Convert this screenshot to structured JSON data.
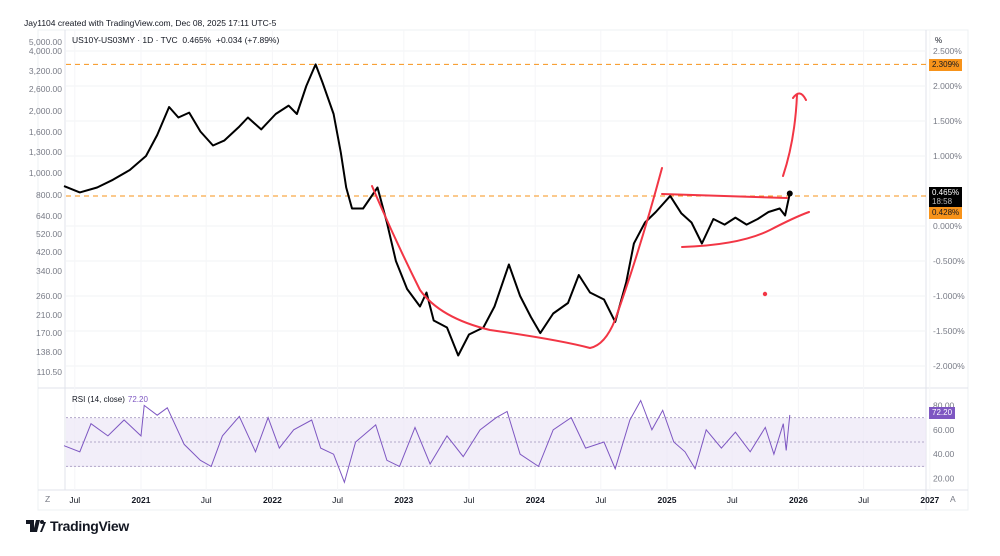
{
  "credit": "Jay1104 created with TradingView.com, Dec 08, 2025 17:11 UTC-5",
  "legend": {
    "symbol": "US10Y-US03MY · 1D · TVC",
    "last": "0.465%",
    "change": "+0.034 (+7.89%)"
  },
  "rsi_legend": {
    "label": "RSI (14, close)",
    "value": "72.20"
  },
  "logo": "TradingView",
  "tags": {
    "high": "2.309%",
    "last": "0.465%",
    "countdown": "18:58",
    "level": "0.428%",
    "rsi": "72.20",
    "unit": "%"
  },
  "axis_buttons": {
    "left": "Z",
    "right": "A"
  },
  "colors": {
    "line": "#000000",
    "level": "#f7931a",
    "annotation": "#f23645",
    "rsi": "#7e57c2",
    "rsi_band": "#ede7f6"
  },
  "chart_data": [
    {
      "type": "line",
      "title": "US10Y-US03MY · 1D · TVC",
      "y_unit": "%",
      "ylim": [
        -2.2,
        2.55
      ],
      "right_ticks": [
        "2.500%",
        "2.000%",
        "1.500%",
        "1.000%",
        "0.000%",
        "-0.500%",
        "-1.000%",
        "-1.500%",
        "-2.000%"
      ],
      "left_ticks": [
        "5,000.00",
        "4,000.00",
        "3,200.00",
        "2,600.00",
        "2,000.00",
        "1,600.00",
        "1,300.00",
        "1,000.00",
        "800.00",
        "640.00",
        "520.00",
        "420.00",
        "340.00",
        "260.00",
        "210.00",
        "170.00",
        "138.00",
        "110.50"
      ],
      "x_ticks": [
        "Jul",
        "2021",
        "Jul",
        "2022",
        "Jul",
        "2023",
        "Jul",
        "2024",
        "Jul",
        "2025",
        "Jul",
        "2026",
        "Jul",
        "2027"
      ],
      "horizontal_levels": [
        2.309,
        0.428
      ],
      "points": [
        [
          "2020-06-01",
          0.57
        ],
        [
          "2020-07-15",
          0.48
        ],
        [
          "2020-09-01",
          0.55
        ],
        [
          "2020-10-15",
          0.66
        ],
        [
          "2020-12-01",
          0.8
        ],
        [
          "2021-01-15",
          1.0
        ],
        [
          "2021-02-15",
          1.3
        ],
        [
          "2021-03-20",
          1.7
        ],
        [
          "2021-04-15",
          1.55
        ],
        [
          "2021-05-15",
          1.62
        ],
        [
          "2021-06-15",
          1.35
        ],
        [
          "2021-07-20",
          1.15
        ],
        [
          "2021-08-20",
          1.22
        ],
        [
          "2021-10-01",
          1.42
        ],
        [
          "2021-10-25",
          1.55
        ],
        [
          "2021-12-01",
          1.38
        ],
        [
          "2022-01-10",
          1.6
        ],
        [
          "2022-02-15",
          1.72
        ],
        [
          "2022-03-10",
          1.6
        ],
        [
          "2022-04-05",
          2.0
        ],
        [
          "2022-05-01",
          2.309
        ],
        [
          "2022-05-20",
          2.05
        ],
        [
          "2022-06-20",
          1.6
        ],
        [
          "2022-07-10",
          1.05
        ],
        [
          "2022-07-25",
          0.55
        ],
        [
          "2022-08-10",
          0.25
        ],
        [
          "2022-09-10",
          0.25
        ],
        [
          "2022-10-20",
          0.55
        ],
        [
          "2022-11-15",
          0.05
        ],
        [
          "2022-12-10",
          -0.5
        ],
        [
          "2023-01-10",
          -0.9
        ],
        [
          "2023-02-15",
          -1.15
        ],
        [
          "2023-03-05",
          -0.95
        ],
        [
          "2023-03-25",
          -1.35
        ],
        [
          "2023-05-01",
          -1.45
        ],
        [
          "2023-06-01",
          -1.85
        ],
        [
          "2023-07-01",
          -1.55
        ],
        [
          "2023-08-10",
          -1.45
        ],
        [
          "2023-09-10",
          -1.15
        ],
        [
          "2023-10-20",
          -0.55
        ],
        [
          "2023-11-20",
          -1.0
        ],
        [
          "2023-12-20",
          -1.3
        ],
        [
          "2024-01-15",
          -1.53
        ],
        [
          "2024-02-20",
          -1.25
        ],
        [
          "2024-04-01",
          -1.1
        ],
        [
          "2024-05-01",
          -0.7
        ],
        [
          "2024-06-01",
          -0.95
        ],
        [
          "2024-07-10",
          -1.05
        ],
        [
          "2024-08-10",
          -1.37
        ],
        [
          "2024-09-10",
          -0.8
        ],
        [
          "2024-10-01",
          -0.25
        ],
        [
          "2024-11-01",
          0.05
        ],
        [
          "2024-12-01",
          0.2
        ],
        [
          "2025-01-10",
          0.43
        ],
        [
          "2025-02-10",
          0.18
        ],
        [
          "2025-03-10",
          0.05
        ],
        [
          "2025-04-08",
          -0.25
        ],
        [
          "2025-05-10",
          0.1
        ],
        [
          "2025-06-10",
          0.02
        ],
        [
          "2025-07-10",
          0.12
        ],
        [
          "2025-08-10",
          0.02
        ],
        [
          "2025-09-10",
          0.1
        ],
        [
          "2025-10-10",
          0.2
        ],
        [
          "2025-11-10",
          0.25
        ],
        [
          "2025-11-25",
          0.15
        ],
        [
          "2025-12-08",
          0.465
        ]
      ]
    },
    {
      "type": "line",
      "title": "RSI (14, close)",
      "ylim": [
        15,
        88
      ],
      "ticks": [
        "80.00",
        "60.00",
        "40.00",
        "20.00"
      ],
      "bands": [
        30,
        50,
        70
      ],
      "points": [
        [
          "2020-06-01",
          47
        ],
        [
          "2020-07-15",
          42
        ],
        [
          "2020-08-15",
          65
        ],
        [
          "2020-10-01",
          55
        ],
        [
          "2020-11-15",
          68
        ],
        [
          "2021-01-01",
          55
        ],
        [
          "2021-01-10",
          80
        ],
        [
          "2021-02-15",
          72
        ],
        [
          "2021-03-15",
          78
        ],
        [
          "2021-05-01",
          48
        ],
        [
          "2021-06-15",
          35
        ],
        [
          "2021-07-15",
          30
        ],
        [
          "2021-08-15",
          55
        ],
        [
          "2021-10-01",
          71
        ],
        [
          "2021-11-15",
          42
        ],
        [
          "2021-12-20",
          70
        ],
        [
          "2022-01-20",
          45
        ],
        [
          "2022-03-01",
          60
        ],
        [
          "2022-04-20",
          68
        ],
        [
          "2022-05-15",
          45
        ],
        [
          "2022-06-20",
          40
        ],
        [
          "2022-07-20",
          17
        ],
        [
          "2022-08-20",
          50
        ],
        [
          "2022-10-15",
          64
        ],
        [
          "2022-11-15",
          35
        ],
        [
          "2022-12-20",
          30
        ],
        [
          "2023-02-01",
          62
        ],
        [
          "2023-03-15",
          32
        ],
        [
          "2023-05-01",
          55
        ],
        [
          "2023-06-15",
          38
        ],
        [
          "2023-08-01",
          60
        ],
        [
          "2023-09-15",
          70
        ],
        [
          "2023-10-15",
          75
        ],
        [
          "2023-11-20",
          40
        ],
        [
          "2024-01-10",
          30
        ],
        [
          "2024-02-20",
          60
        ],
        [
          "2024-04-10",
          70
        ],
        [
          "2024-05-20",
          45
        ],
        [
          "2024-07-10",
          50
        ],
        [
          "2024-08-10",
          28
        ],
        [
          "2024-09-20",
          68
        ],
        [
          "2024-10-20",
          84
        ],
        [
          "2024-11-20",
          60
        ],
        [
          "2024-12-20",
          76
        ],
        [
          "2025-01-20",
          50
        ],
        [
          "2025-02-20",
          42
        ],
        [
          "2025-03-20",
          28
        ],
        [
          "2025-04-20",
          60
        ],
        [
          "2025-06-01",
          45
        ],
        [
          "2025-07-10",
          58
        ],
        [
          "2025-08-20",
          42
        ],
        [
          "2025-10-01",
          62
        ],
        [
          "2025-10-25",
          40
        ],
        [
          "2025-11-20",
          65
        ],
        [
          "2025-11-28",
          43
        ],
        [
          "2025-12-08",
          72.2
        ]
      ]
    }
  ]
}
